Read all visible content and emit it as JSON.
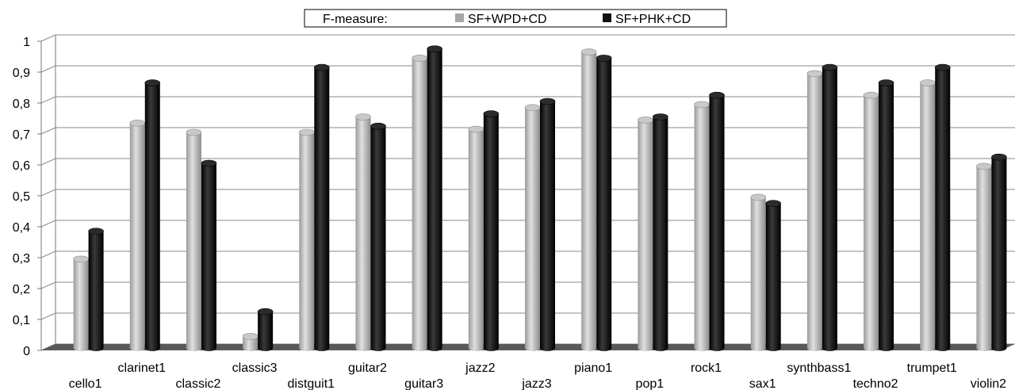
{
  "chart_data": {
    "type": "bar",
    "legend": {
      "title": "F-measure:",
      "placement": "top-center"
    },
    "categories": [
      "cello1",
      "clarinet1",
      "classic2",
      "classic3",
      "distguit1",
      "guitar2",
      "guitar3",
      "jazz2",
      "jazz3",
      "piano1",
      "pop1",
      "rock1",
      "sax1",
      "synthbass1",
      "techno2",
      "trumpet1",
      "violin2"
    ],
    "series": [
      {
        "name": "SF+WPD+CD",
        "color": "#a6a6a6",
        "values": [
          0.29,
          0.73,
          0.7,
          0.04,
          0.7,
          0.75,
          0.94,
          0.71,
          0.78,
          0.96,
          0.74,
          0.79,
          0.49,
          0.89,
          0.82,
          0.86,
          0.59
        ]
      },
      {
        "name": "SF+PHK+CD",
        "color": "#111111",
        "values": [
          0.38,
          0.86,
          0.6,
          0.12,
          0.91,
          0.72,
          0.97,
          0.76,
          0.8,
          0.94,
          0.75,
          0.82,
          0.47,
          0.91,
          0.86,
          0.91,
          0.62
        ]
      }
    ],
    "ylim": [
      0,
      1
    ],
    "yticks": [
      "0",
      "0,1",
      "0,2",
      "0,3",
      "0,4",
      "0,5",
      "0,6",
      "0,7",
      "0,8",
      "0,9",
      "1"
    ],
    "grid": true,
    "floor_color": "#595959"
  }
}
